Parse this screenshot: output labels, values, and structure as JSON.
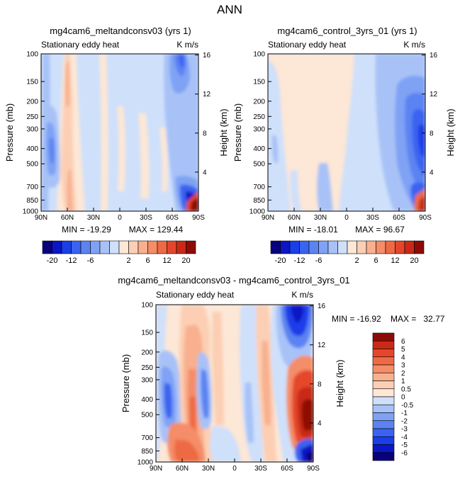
{
  "page_title": "ANN",
  "chart_data": [
    {
      "type": "heatmap",
      "title": "mg4cam6_meltandconsv03 (yrs 1)",
      "subtitle_left": "Stationary eddy heat",
      "units": "K m/s",
      "ylabel": "Pressure (mb)",
      "ylabel_right": "Height (km)",
      "xticks": [
        "90N",
        "60N",
        "30N",
        "0",
        "30S",
        "60S",
        "90S"
      ],
      "yticks": [
        "100",
        "150",
        "200",
        "250",
        "300",
        "400",
        "500",
        "700",
        "850",
        "1000"
      ],
      "yticks_right": [
        "16",
        "12",
        "8",
        "4"
      ],
      "min_label": "MIN = -19.29",
      "max_label": "MAX = 129.44",
      "min": -19.29,
      "max": 129.44
    },
    {
      "type": "heatmap",
      "title": "mg4cam6_control_3yrs_01 (yrs 1)",
      "subtitle_left": "Stationary eddy heat",
      "units": "K m/s",
      "ylabel": "Pressure (mb)",
      "ylabel_right": "Height (km)",
      "xticks": [
        "90N",
        "60N",
        "30N",
        "0",
        "30S",
        "60S",
        "90S"
      ],
      "yticks": [
        "100",
        "150",
        "200",
        "250",
        "300",
        "400",
        "500",
        "700",
        "850",
        "1000"
      ],
      "yticks_right": [
        "16",
        "12",
        "8",
        "4"
      ],
      "min_label": "MIN = -18.01",
      "max_label": "MAX = 96.67",
      "min": -18.01,
      "max": 96.67
    },
    {
      "type": "heatmap",
      "title": "mg4cam6_meltandconsv03 - mg4cam6_control_3yrs_01",
      "subtitle_left": "Stationary eddy heat",
      "units": "K m/s",
      "ylabel": "Pressure (mb)",
      "ylabel_right": "Height (km)",
      "xticks": [
        "90N",
        "60N",
        "30N",
        "0",
        "30S",
        "60S",
        "90S"
      ],
      "yticks": [
        "100",
        "150",
        "200",
        "250",
        "300",
        "400",
        "500",
        "700",
        "850",
        "1000"
      ],
      "yticks_right": [
        "16",
        "12",
        "8",
        "4"
      ],
      "minmax_label": "MIN = -16.92    MAX =   32.77",
      "min": -16.92,
      "max": 32.77
    }
  ],
  "colorbar_top": {
    "labels": [
      "-20",
      "-12",
      "-6",
      "2",
      "6",
      "12",
      "20"
    ],
    "colors": [
      "#08007c",
      "#0b16c4",
      "#1a3ee8",
      "#3a63f0",
      "#5b83f2",
      "#7fa2f5",
      "#a8c2f7",
      "#cfe0fb",
      "#fde7d6",
      "#fccfb4",
      "#f8b08e",
      "#f48d68",
      "#ee6a45",
      "#e4462c",
      "#c82a17",
      "#8e0b05"
    ]
  },
  "colorbar_diff": {
    "labels": [
      "6",
      "5",
      "4",
      "3",
      "2",
      "1",
      "0.5",
      "0",
      "-0.5",
      "-1",
      "-2",
      "-3",
      "-4",
      "-5",
      "-6"
    ],
    "colors": [
      "#8e0b05",
      "#c82a17",
      "#e4462c",
      "#ee6a45",
      "#f48d68",
      "#f8b08e",
      "#fccfb4",
      "#fde7d6",
      "#cfe0fb",
      "#a8c2f7",
      "#7fa2f5",
      "#5b83f2",
      "#3a63f0",
      "#1a3ee8",
      "#0b16c4",
      "#08007c"
    ]
  }
}
